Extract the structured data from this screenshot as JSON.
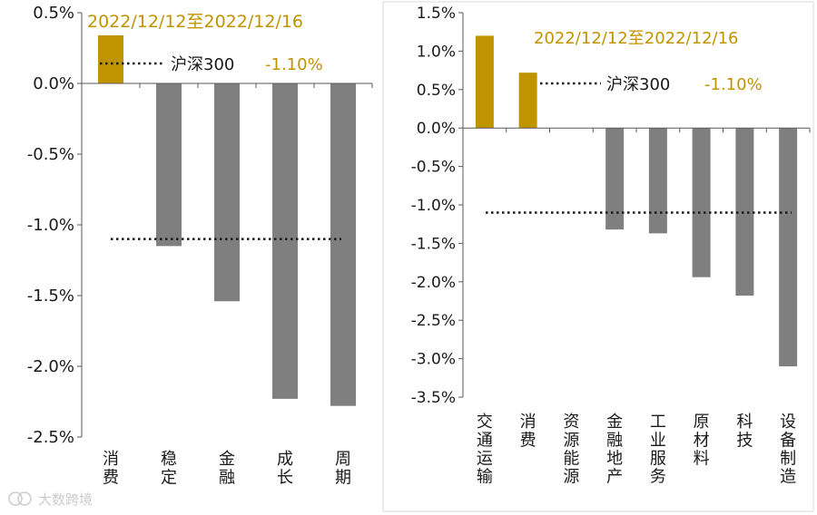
{
  "chart_data": [
    {
      "type": "bar",
      "categories": [
        "消费",
        "稳定",
        "金融",
        "成长",
        "周期"
      ],
      "values": [
        0.34,
        -1.15,
        -1.54,
        -2.23,
        -2.28
      ],
      "ylim": [
        -2.5,
        0.5
      ],
      "yticks": [
        "0.5%",
        "0.0%",
        "-0.5%",
        "-1.0%",
        "-1.5%",
        "-2.0%",
        "-2.5%"
      ],
      "ytick_values": [
        0.5,
        0.0,
        -0.5,
        -1.0,
        -1.5,
        -2.0,
        -2.5
      ],
      "date_range": "2022/12/12至2022/12/16",
      "benchmark": {
        "name": "沪深300",
        "label": "-1.10%",
        "value": -1.1
      },
      "highlight_color": "#c09300",
      "bar_color": "#7f7f7f",
      "grid": false,
      "legend": "top"
    },
    {
      "type": "bar",
      "categories": [
        "交通运输",
        "消费",
        "资源能源",
        "金融地产",
        "工业服务",
        "原材料",
        "科技",
        "设备制造"
      ],
      "values": [
        1.2,
        0.72,
        0.0,
        -1.32,
        -1.37,
        -1.94,
        -2.18,
        -3.1
      ],
      "ylim": [
        -3.5,
        1.5
      ],
      "yticks": [
        "1.5%",
        "1.0%",
        "0.5%",
        "0.0%",
        "-0.5%",
        "-1.0%",
        "-1.5%",
        "-2.0%",
        "-2.5%",
        "-3.0%",
        "-3.5%"
      ],
      "ytick_values": [
        1.5,
        1.0,
        0.5,
        0.0,
        -0.5,
        -1.0,
        -1.5,
        -2.0,
        -2.5,
        -3.0,
        -3.5
      ],
      "date_range": "2022/12/12至2022/12/16",
      "benchmark": {
        "name": "沪深300",
        "label": "-1.10%",
        "value": -1.1
      },
      "highlight_color": "#c09300",
      "bar_color": "#7f7f7f",
      "grid": false,
      "legend": "top"
    }
  ],
  "watermark": "大数跨境"
}
